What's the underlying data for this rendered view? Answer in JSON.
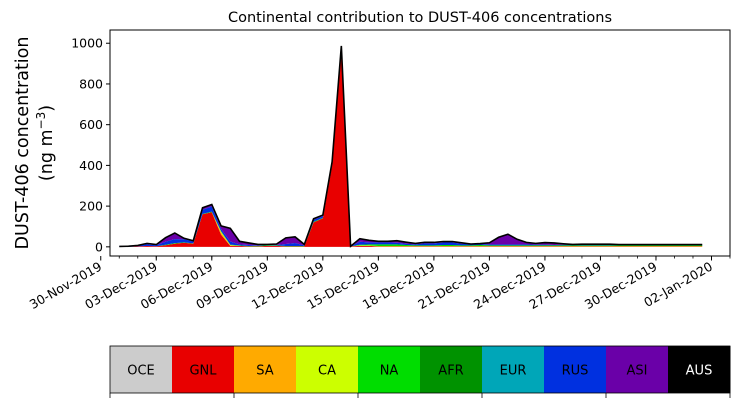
{
  "chart_data": {
    "type": "area",
    "stacked": true,
    "title": "Continental contribution to DUST-406 concentrations",
    "ylabel_line1": "DUST-406 concentration",
    "ylabel_line2_pre": "(ng m",
    "ylabel_line2_sup": "−3",
    "ylabel_line2_post": ")",
    "ylim": [
      -45,
      1065
    ],
    "yticks": [
      0,
      200,
      400,
      600,
      800,
      1000
    ],
    "xlim": [
      "2019-11-30T12:00",
      "2020-01-03"
    ],
    "xticks": [
      "30-Nov-2019",
      "03-Dec-2019",
      "06-Dec-2019",
      "09-Dec-2019",
      "12-Dec-2019",
      "15-Dec-2019",
      "18-Dec-2019",
      "21-Dec-2019",
      "24-Dec-2019",
      "27-Dec-2019",
      "30-Dec-2019",
      "02-Jan-2020"
    ],
    "minor_ticks_every_days": 1,
    "grid": false,
    "x": [
      "2019-12-01",
      "2019-12-01T12:00",
      "2019-12-02",
      "2019-12-02T12:00",
      "2019-12-03",
      "2019-12-03T12:00",
      "2019-12-04",
      "2019-12-04T12:00",
      "2019-12-05",
      "2019-12-05T12:00",
      "2019-12-06",
      "2019-12-06T12:00",
      "2019-12-07",
      "2019-12-07T12:00",
      "2019-12-08",
      "2019-12-08T12:00",
      "2019-12-09",
      "2019-12-09T12:00",
      "2019-12-10",
      "2019-12-10T12:00",
      "2019-12-11",
      "2019-12-11T12:00",
      "2019-12-12",
      "2019-12-12T12:00",
      "2019-12-13",
      "2019-12-13T12:00",
      "2019-12-14",
      "2019-12-14T12:00",
      "2019-12-15",
      "2019-12-15T12:00",
      "2019-12-16",
      "2019-12-16T12:00",
      "2019-12-17",
      "2019-12-17T12:00",
      "2019-12-18",
      "2019-12-18T12:00",
      "2019-12-19",
      "2019-12-19T12:00",
      "2019-12-20",
      "2019-12-20T12:00",
      "2019-12-21",
      "2019-12-21T12:00",
      "2019-12-22",
      "2019-12-22T12:00",
      "2019-12-23",
      "2019-12-23T12:00",
      "2019-12-24",
      "2019-12-24T12:00",
      "2019-12-25",
      "2019-12-25T12:00",
      "2019-12-26",
      "2019-12-26T12:00",
      "2019-12-27",
      "2019-12-27T12:00",
      "2019-12-28",
      "2019-12-28T12:00",
      "2019-12-29",
      "2019-12-29T12:00",
      "2019-12-30",
      "2019-12-30T12:00",
      "2019-12-31",
      "2019-12-31T12:00",
      "2020-01-01",
      "2020-01-01T12:00"
    ],
    "series": [
      {
        "name": "OCE",
        "color": "#cccccc",
        "values": [
          0,
          0,
          0,
          0,
          0,
          0,
          0,
          0,
          0,
          0,
          0,
          0,
          0,
          0,
          0,
          0,
          0,
          0,
          0,
          0,
          0,
          0,
          0,
          0,
          0,
          0,
          0,
          0,
          0,
          0,
          0,
          0,
          0,
          0,
          0,
          0,
          0,
          0,
          0,
          0,
          0,
          0,
          0,
          0,
          0,
          0,
          0,
          0,
          0,
          0,
          0,
          0,
          0,
          0,
          0,
          0,
          0,
          0,
          0,
          0,
          0,
          0,
          0,
          0
        ]
      },
      {
        "name": "GNL",
        "color": "#e80000",
        "values": [
          0,
          0,
          2,
          4,
          3,
          8,
          15,
          20,
          15,
          160,
          170,
          60,
          5,
          5,
          2,
          2,
          5,
          5,
          2,
          2,
          2,
          120,
          140,
          400,
          960,
          2,
          5,
          5,
          2,
          2,
          2,
          2,
          2,
          2,
          2,
          2,
          2,
          2,
          2,
          2,
          2,
          2,
          2,
          2,
          2,
          2,
          2,
          2,
          2,
          2,
          2,
          2,
          2,
          2,
          2,
          2,
          2,
          2,
          2,
          2,
          2,
          2,
          2,
          2
        ]
      },
      {
        "name": "SA",
        "color": "#ffaa00",
        "values": [
          0,
          0,
          0,
          0,
          0,
          0,
          0,
          0,
          0,
          0,
          0,
          10,
          2,
          0,
          0,
          0,
          0,
          0,
          0,
          0,
          0,
          0,
          0,
          0,
          0,
          0,
          0,
          0,
          0,
          0,
          0,
          0,
          0,
          0,
          0,
          0,
          0,
          0,
          0,
          0,
          0,
          0,
          0,
          0,
          0,
          0,
          0,
          0,
          0,
          0,
          0,
          0,
          0,
          0,
          0,
          0,
          0,
          0,
          0,
          0,
          0,
          0,
          0,
          0
        ]
      },
      {
        "name": "CA",
        "color": "#ccff00",
        "values": [
          0,
          0,
          0,
          0,
          0,
          0,
          0,
          0,
          0,
          0,
          0,
          5,
          2,
          0,
          0,
          0,
          0,
          0,
          0,
          0,
          0,
          0,
          0,
          0,
          0,
          0,
          2,
          2,
          2,
          2,
          2,
          2,
          2,
          2,
          2,
          2,
          2,
          2,
          2,
          2,
          2,
          2,
          2,
          2,
          2,
          2,
          2,
          2,
          2,
          2,
          2,
          2,
          2,
          2,
          2,
          2,
          2,
          2,
          2,
          2,
          2,
          2,
          2,
          2
        ]
      },
      {
        "name": "NA",
        "color": "#00dd00",
        "values": [
          0,
          0,
          0,
          0,
          0,
          2,
          3,
          2,
          2,
          2,
          3,
          3,
          2,
          2,
          2,
          3,
          3,
          2,
          2,
          2,
          2,
          3,
          2,
          2,
          2,
          0,
          3,
          5,
          8,
          8,
          8,
          5,
          3,
          3,
          3,
          5,
          5,
          3,
          3,
          5,
          3,
          3,
          3,
          3,
          3,
          3,
          3,
          3,
          3,
          3,
          3,
          3,
          3,
          3,
          3,
          3,
          3,
          3,
          3,
          3,
          3,
          3,
          3,
          3
        ]
      },
      {
        "name": "AFR",
        "color": "#009200",
        "values": [
          0,
          0,
          0,
          0,
          0,
          0,
          0,
          0,
          0,
          0,
          0,
          0,
          0,
          0,
          0,
          0,
          0,
          0,
          0,
          0,
          0,
          0,
          0,
          0,
          0,
          0,
          0,
          0,
          0,
          0,
          0,
          0,
          0,
          0,
          0,
          0,
          0,
          0,
          0,
          0,
          0,
          0,
          0,
          0,
          0,
          0,
          0,
          0,
          0,
          0,
          0,
          0,
          0,
          0,
          0,
          0,
          0,
          0,
          0,
          0,
          0,
          0,
          0,
          0
        ]
      },
      {
        "name": "EUR",
        "color": "#00a6b8",
        "values": [
          0,
          0,
          0,
          0,
          0,
          0,
          0,
          0,
          0,
          0,
          0,
          0,
          0,
          0,
          0,
          0,
          0,
          0,
          0,
          0,
          0,
          0,
          0,
          0,
          0,
          0,
          0,
          0,
          0,
          0,
          0,
          0,
          0,
          0,
          0,
          0,
          0,
          0,
          0,
          0,
          0,
          0,
          0,
          0,
          0,
          0,
          0,
          0,
          0,
          0,
          0,
          0,
          0,
          0,
          0,
          0,
          0,
          0,
          0,
          0,
          0,
          0,
          0,
          0
        ]
      },
      {
        "name": "RUS",
        "color": "#0030e0",
        "values": [
          2,
          3,
          5,
          8,
          5,
          15,
          20,
          15,
          10,
          20,
          25,
          10,
          15,
          5,
          5,
          2,
          2,
          2,
          10,
          15,
          3,
          10,
          8,
          10,
          20,
          1,
          15,
          10,
          10,
          10,
          8,
          6,
          5,
          10,
          10,
          12,
          12,
          8,
          5,
          5,
          5,
          5,
          5,
          5,
          5,
          4,
          4,
          2,
          3,
          3,
          3,
          2,
          2,
          2,
          2,
          2,
          2,
          2,
          2,
          2,
          2,
          2,
          2,
          2
        ]
      },
      {
        "name": "ASI",
        "color": "#6a00a8",
        "values": [
          0,
          0,
          0,
          5,
          3,
          20,
          30,
          5,
          3,
          10,
          10,
          15,
          65,
          15,
          10,
          5,
          2,
          5,
          30,
          30,
          5,
          5,
          6,
          5,
          5,
          0,
          15,
          10,
          5,
          5,
          10,
          8,
          5,
          5,
          5,
          5,
          5,
          5,
          2,
          2,
          8,
          35,
          50,
          25,
          10,
          6,
          10,
          10,
          5,
          2,
          3,
          4,
          4,
          4,
          2,
          2,
          2,
          2,
          2,
          2,
          2,
          2,
          2,
          2
        ]
      },
      {
        "name": "AUS",
        "color": "#000000",
        "values": [
          0,
          0,
          0,
          0,
          0,
          0,
          0,
          0,
          0,
          0,
          0,
          0,
          0,
          0,
          0,
          0,
          0,
          0,
          0,
          0,
          0,
          0,
          0,
          0,
          0,
          0,
          0,
          0,
          0,
          0,
          0,
          0,
          0,
          0,
          0,
          0,
          0,
          0,
          0,
          0,
          0,
          0,
          0,
          0,
          0,
          0,
          0,
          0,
          0,
          0,
          0,
          0,
          0,
          0,
          0,
          0,
          0,
          0,
          0,
          0,
          0,
          0,
          0,
          0
        ]
      }
    ],
    "legend_placement": "bottom"
  }
}
